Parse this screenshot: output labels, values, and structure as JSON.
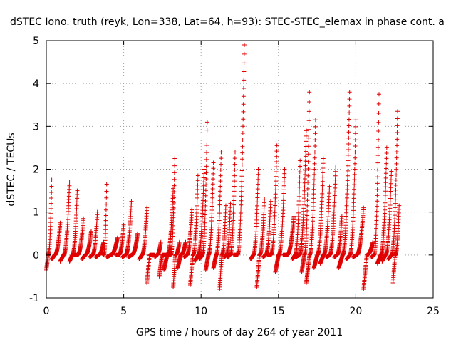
{
  "chart_data": {
    "type": "scatter",
    "title": "dSTEC Iono. truth (reyk, Lon=338, Lat=64, h=93): STEC-STEC_elemax in phase cont. a",
    "xlabel": "GPS time / hours of day 264 of year 2011",
    "ylabel": "dSTEC  / TECUs",
    "xlim": [
      0,
      25
    ],
    "ylim": [
      -1,
      5
    ],
    "xticks": [
      "0",
      "5",
      "10",
      "15",
      "20",
      "25"
    ],
    "yticks": [
      "-1",
      "0",
      "1",
      "2",
      "3",
      "4",
      "5"
    ],
    "grid": true,
    "marker": "plus",
    "color": "#e00000",
    "arcs": [
      {
        "t0": 0.0,
        "t1": 0.35,
        "peak": 1.75,
        "low": -0.35
      },
      {
        "t0": 0.35,
        "t1": 0.9,
        "peak": 0.75,
        "low": -0.1
      },
      {
        "t0": 0.9,
        "t1": 1.5,
        "peak": 1.7,
        "low": -0.15
      },
      {
        "t0": 1.5,
        "t1": 2.0,
        "peak": 1.5,
        "low": -0.15
      },
      {
        "t0": 1.8,
        "t1": 2.4,
        "peak": 0.85,
        "low": 0.0
      },
      {
        "t0": 2.3,
        "t1": 2.9,
        "peak": 0.55,
        "low": -0.1
      },
      {
        "t0": 2.8,
        "t1": 3.3,
        "peak": 1.0,
        "low": -0.05
      },
      {
        "t0": 3.2,
        "t1": 3.7,
        "peak": 0.3,
        "low": -0.05
      },
      {
        "t0": 3.6,
        "t1": 3.9,
        "peak": 1.65,
        "low": 0.05
      },
      {
        "t0": 3.9,
        "t1": 4.6,
        "peak": 0.4,
        "low": -0.05
      },
      {
        "t0": 4.5,
        "t1": 5.0,
        "peak": 0.7,
        "low": 0.0
      },
      {
        "t0": 4.9,
        "t1": 5.5,
        "peak": 1.25,
        "low": -0.05
      },
      {
        "t0": 5.3,
        "t1": 5.9,
        "peak": 0.5,
        "low": -0.05
      },
      {
        "t0": 6.0,
        "t1": 6.5,
        "peak": 1.1,
        "low": -0.1
      },
      {
        "t0": 6.5,
        "t1": 7.0,
        "peak": 0.0,
        "low": -0.65
      },
      {
        "t0": 7.0,
        "t1": 7.4,
        "peak": 0.3,
        "low": -0.05
      },
      {
        "t0": 7.3,
        "t1": 7.8,
        "peak": 0.0,
        "low": -0.5
      },
      {
        "t0": 7.6,
        "t1": 8.2,
        "peak": 1.55,
        "low": -0.35
      },
      {
        "t0": 7.9,
        "t1": 8.3,
        "peak": 2.25,
        "low": 0.0
      },
      {
        "t0": 8.2,
        "t1": 8.6,
        "peak": 0.3,
        "low": -0.75
      },
      {
        "t0": 8.5,
        "t1": 9.0,
        "peak": 0.3,
        "low": -0.3
      },
      {
        "t0": 8.9,
        "t1": 9.4,
        "peak": 1.05,
        "low": -0.05
      },
      {
        "t0": 9.3,
        "t1": 9.8,
        "peak": 1.85,
        "low": -0.7
      },
      {
        "t0": 9.6,
        "t1": 10.2,
        "peak": 2.0,
        "low": -0.15
      },
      {
        "t0": 9.9,
        "t1": 10.4,
        "peak": 3.1,
        "low": -0.1
      },
      {
        "t0": 10.3,
        "t1": 10.8,
        "peak": 2.15,
        "low": -0.35
      },
      {
        "t0": 10.8,
        "t1": 11.3,
        "peak": 2.4,
        "low": -0.3
      },
      {
        "t0": 11.2,
        "t1": 11.6,
        "peak": 1.15,
        "low": -0.8
      },
      {
        "t0": 11.5,
        "t1": 11.9,
        "peak": 1.2,
        "low": -0.05
      },
      {
        "t0": 11.7,
        "t1": 12.2,
        "peak": 2.4,
        "low": -0.05
      },
      {
        "t0": 12.1,
        "t1": 12.8,
        "peak": 4.9,
        "low": 0.0
      },
      {
        "t0": 13.2,
        "t1": 13.7,
        "peak": 2.0,
        "low": -0.1
      },
      {
        "t0": 13.6,
        "t1": 14.1,
        "peak": 1.3,
        "low": -0.75
      },
      {
        "t0": 14.0,
        "t1": 14.5,
        "peak": 1.25,
        "low": -0.05
      },
      {
        "t0": 14.3,
        "t1": 14.9,
        "peak": 2.55,
        "low": 0.0
      },
      {
        "t0": 14.8,
        "t1": 15.4,
        "peak": 2.0,
        "low": -0.4
      },
      {
        "t0": 15.3,
        "t1": 16.0,
        "peak": 0.9,
        "low": 0.0
      },
      {
        "t0": 15.9,
        "t1": 16.4,
        "peak": 2.2,
        "low": -0.1
      },
      {
        "t0": 16.1,
        "t1": 16.8,
        "peak": 2.9,
        "low": -0.05
      },
      {
        "t0": 16.5,
        "t1": 17.0,
        "peak": 3.8,
        "low": -0.4
      },
      {
        "t0": 16.8,
        "t1": 17.4,
        "peak": 3.15,
        "low": -0.65
      },
      {
        "t0": 17.3,
        "t1": 17.9,
        "peak": 2.25,
        "low": -0.3
      },
      {
        "t0": 17.7,
        "t1": 18.3,
        "peak": 1.6,
        "low": -0.2
      },
      {
        "t0": 18.1,
        "t1": 18.7,
        "peak": 2.05,
        "low": -0.05
      },
      {
        "t0": 18.6,
        "t1": 19.1,
        "peak": 0.9,
        "low": -0.05
      },
      {
        "t0": 18.9,
        "t1": 19.6,
        "peak": 3.8,
        "low": -0.3
      },
      {
        "t0": 19.4,
        "t1": 20.0,
        "peak": 3.15,
        "low": -0.1
      },
      {
        "t0": 19.8,
        "t1": 20.5,
        "peak": 1.1,
        "low": -0.05
      },
      {
        "t0": 20.5,
        "t1": 21.1,
        "peak": 0.3,
        "low": -0.8
      },
      {
        "t0": 21.0,
        "t1": 21.5,
        "peak": 3.75,
        "low": -0.05
      },
      {
        "t0": 21.4,
        "t1": 22.0,
        "peak": 2.5,
        "low": -0.2
      },
      {
        "t0": 21.7,
        "t1": 22.3,
        "peak": 1.95,
        "low": -0.15
      },
      {
        "t0": 22.1,
        "t1": 22.7,
        "peak": 3.35,
        "low": -0.1
      },
      {
        "t0": 22.4,
        "t1": 22.8,
        "peak": 1.15,
        "low": -0.65
      }
    ]
  }
}
